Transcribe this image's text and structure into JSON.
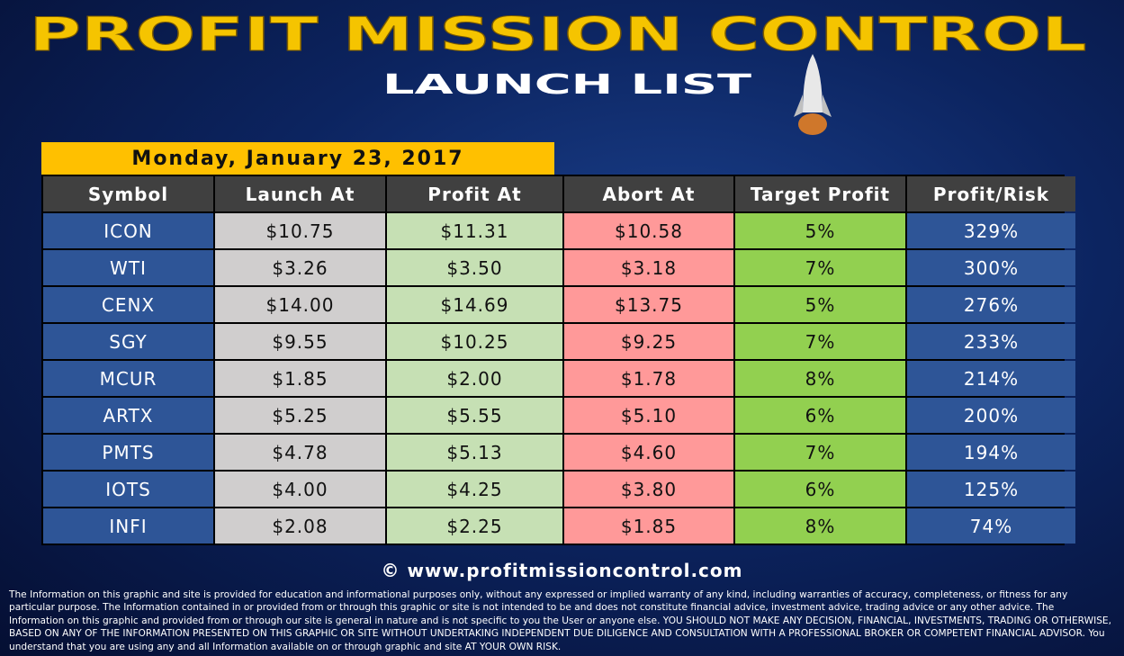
{
  "header": {
    "title": "PROFIT MISSION CONTROL",
    "subtitle": "LAUNCH LIST",
    "date": "Monday, January 23, 2017"
  },
  "table": {
    "columns": [
      "Symbol",
      "Launch At",
      "Profit At",
      "Abort At",
      "Target Profit",
      "Profit/Risk"
    ],
    "rows": [
      [
        "ICON",
        "$10.75",
        "$11.31",
        "$10.58",
        "5%",
        "329%"
      ],
      [
        "WTI",
        "$3.26",
        "$3.50",
        "$3.18",
        "7%",
        "300%"
      ],
      [
        "CENX",
        "$14.00",
        "$14.69",
        "$13.75",
        "5%",
        "276%"
      ],
      [
        "SGY",
        "$9.55",
        "$10.25",
        "$9.25",
        "7%",
        "233%"
      ],
      [
        "MCUR",
        "$1.85",
        "$2.00",
        "$1.78",
        "8%",
        "214%"
      ],
      [
        "ARTX",
        "$5.25",
        "$5.55",
        "$5.10",
        "6%",
        "200%"
      ],
      [
        "PMTS",
        "$4.78",
        "$5.13",
        "$4.60",
        "7%",
        "194%"
      ],
      [
        "IOTS",
        "$4.00",
        "$4.25",
        "$3.80",
        "6%",
        "125%"
      ],
      [
        "INFI",
        "$2.08",
        "$2.25",
        "$1.85",
        "8%",
        "74%"
      ]
    ]
  },
  "footer": {
    "website": "© www.profitmissioncontrol.com",
    "disclaimer": "The Information on this graphic and site is provided for education and informational purposes only, without any expressed or implied warranty of any kind, including warranties of accuracy, completeness, or fitness for any particular purpose. The Information contained in or provided from or through this graphic or site is not intended to be and does not constitute financial advice, investment advice, trading advice or any other advice. The Information on this graphic and provided from or through our site is general in nature and is not specific to you the User or anyone else. YOU SHOULD NOT MAKE ANY DECISION, FINANCIAL, INVESTMENTS, TRADING OR OTHERWISE, BASED ON ANY OF THE INFORMATION PRESENTED ON THIS GRAPHIC OR SITE WITHOUT UNDERTAKING INDEPENDENT DUE DILIGENCE AND CONSULTATION WITH A PROFESSIONAL BROKER OR COMPETENT FINANCIAL ADVISOR. You understand that you are using any and all Information available on or through graphic and site AT YOUR OWN RISK."
  }
}
